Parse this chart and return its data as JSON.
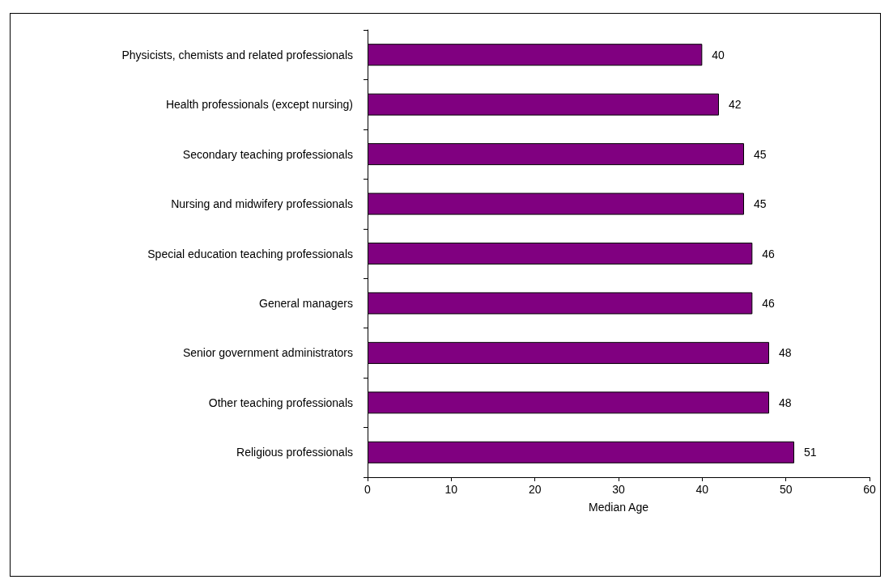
{
  "chart_data": {
    "type": "bar",
    "orientation": "horizontal",
    "xlabel": "Median Age",
    "categories": [
      "Physicists, chemists and related professionals",
      "Health professionals (except nursing)",
      "Secondary teaching professionals",
      "Nursing and midwifery professionals",
      "Special education teaching professionals",
      "General managers",
      "Senior government administrators",
      "Other teaching professionals",
      "Religious professionals"
    ],
    "values": [
      40,
      42,
      45,
      45,
      46,
      46,
      48,
      48,
      51
    ],
    "color": "#800080",
    "xlim": [
      0,
      60
    ],
    "xticks": [
      0,
      10,
      20,
      30,
      40,
      50,
      60
    ],
    "data_labels": true,
    "grid": false
  }
}
